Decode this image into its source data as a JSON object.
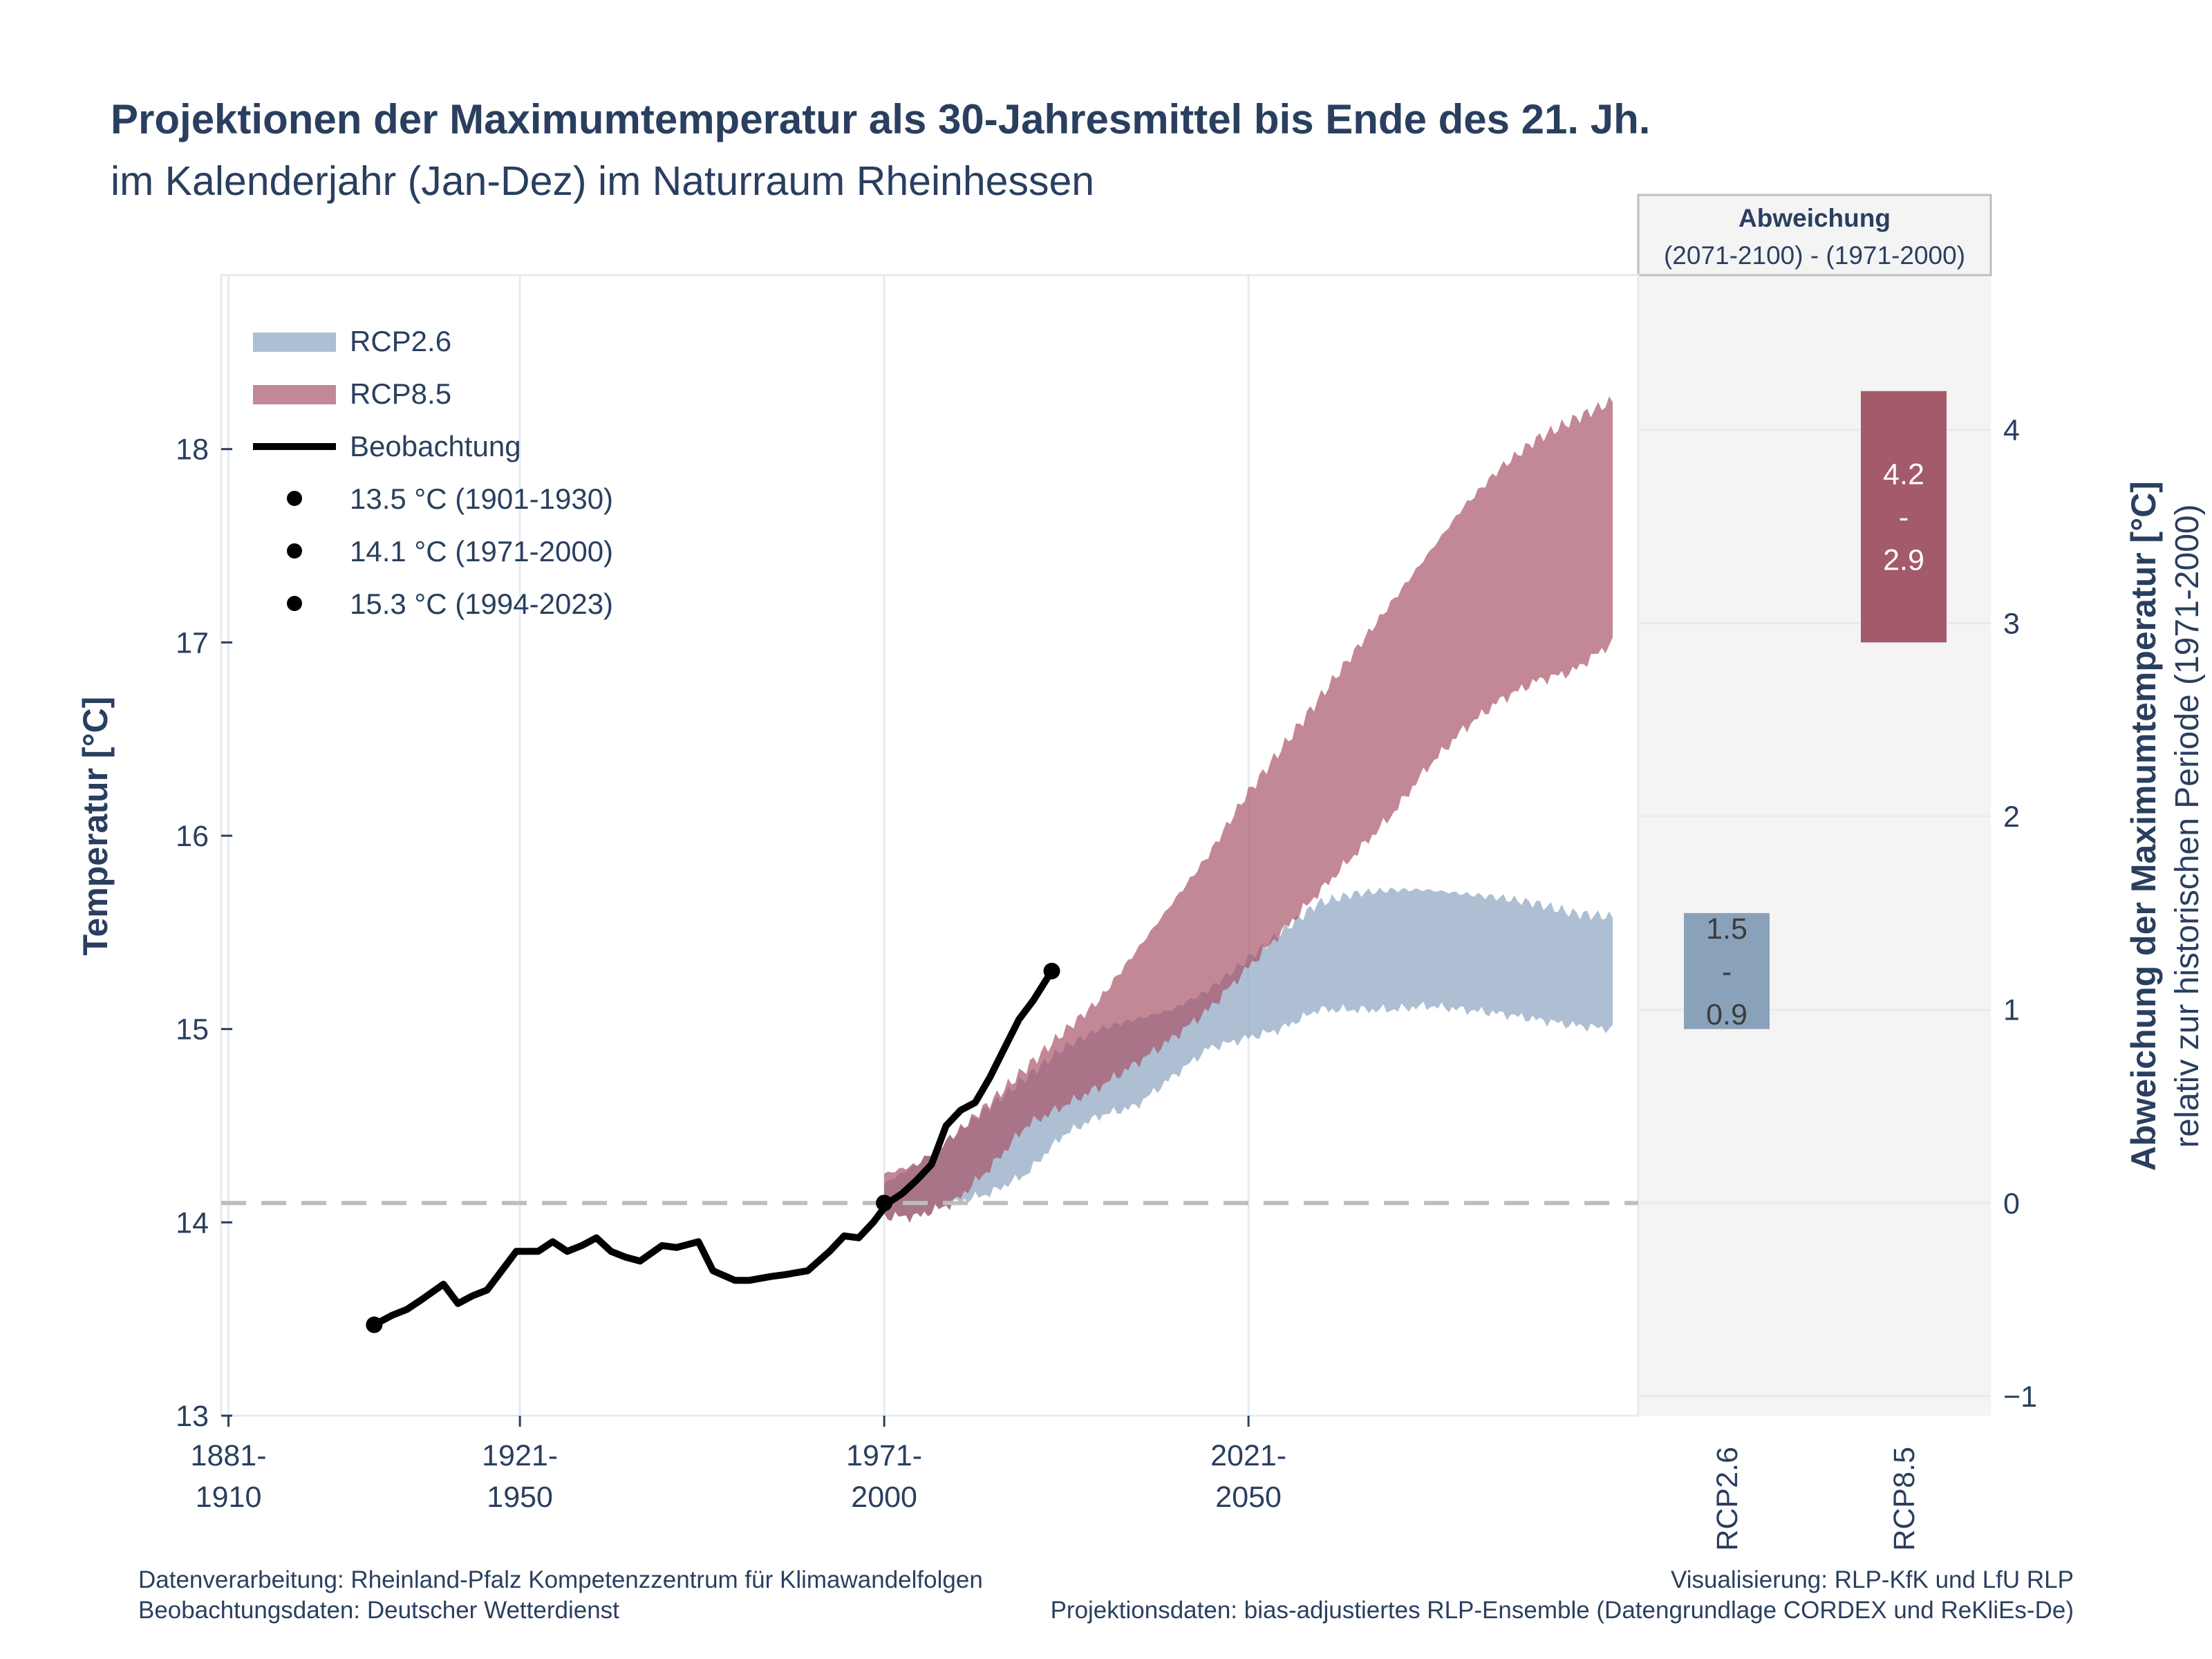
{
  "title": "Projektionen der Maximumtemperatur als 30-Jahresmittel bis Ende des 21. Jh.",
  "subtitle": "im Kalenderjahr (Jan-Dez) im Naturraum Rheinhessen",
  "footer": {
    "left_line1": "Datenverarbeitung: Rheinland-Pfalz Kompetenzzentrum für Klimawandelfolgen",
    "left_line2": "Beobachtungsdaten:  Deutscher Wetterdienst",
    "right_line1": "Visualisierung: RLP-KfK und LfU RLP",
    "right_line2": "Projektionsdaten: bias-adjustiertes RLP-Ensemble (Datengrundlage CORDEX und ReKliEs-De)"
  },
  "colors": {
    "rcp26": "#8fa6c2",
    "rcp85": "#a74f64",
    "rcp26_bar": "#8aa1ba",
    "rcp85_bar": "#a35a6a",
    "observation": "#000000",
    "text": "#2a3f5f",
    "panel_bg": "#f4f4f4"
  },
  "chart_data": [
    {
      "type": "area",
      "ylabel": "Temperatur [°C]",
      "ylim": [
        13,
        18.9
      ],
      "yticks": [
        "13",
        "14",
        "15",
        "16",
        "17",
        "18"
      ],
      "xlim": [
        1894.5,
        2089
      ],
      "xticks": [
        {
          "x": 1895.5,
          "label": [
            "1881-",
            "1910"
          ]
        },
        {
          "x": 1935.5,
          "label": [
            "1921-",
            "1950"
          ]
        },
        {
          "x": 1985.5,
          "label": [
            "1971-",
            "2000"
          ]
        },
        {
          "x": 2035.5,
          "label": [
            "2021-",
            "2050"
          ]
        }
      ],
      "reference_line": 14.1,
      "grid": true,
      "legend_position": "top-left",
      "legend": {
        "rcp26": "RCP2.6",
        "rcp85": "RCP8.5",
        "observation": "Beobachtung",
        "points": [
          "13.5 °C (1901-1930)",
          "14.1 °C (1971-2000)",
          "15.3 °C (1994-2023)"
        ]
      },
      "series": [
        {
          "name": "RCP2.6",
          "x": [
            1985.5,
            1990,
            1995,
            2000,
            2005,
            2010,
            2015,
            2020,
            2025,
            2030,
            2035,
            2040,
            2045,
            2050,
            2055,
            2060,
            2065,
            2070,
            2075,
            2080,
            2085.5
          ],
          "lower": [
            14.03,
            14.03,
            14.1,
            14.15,
            14.25,
            14.45,
            14.55,
            14.6,
            14.75,
            14.9,
            14.95,
            15.0,
            15.1,
            15.1,
            15.1,
            15.12,
            15.1,
            15.08,
            15.05,
            15.02,
            15.0
          ],
          "upper": [
            14.2,
            14.3,
            14.45,
            14.6,
            14.75,
            14.9,
            15.0,
            15.05,
            15.1,
            15.2,
            15.35,
            15.5,
            15.65,
            15.7,
            15.72,
            15.72,
            15.7,
            15.68,
            15.65,
            15.6,
            15.58
          ]
        },
        {
          "name": "RCP8.5",
          "x": [
            1985.5,
            1990,
            1995,
            2000,
            2005,
            2010,
            2015,
            2020,
            2025,
            2030,
            2035,
            2040,
            2045,
            2050,
            2055,
            2060,
            2065,
            2070,
            2075,
            2080,
            2085.5
          ],
          "lower": [
            14.03,
            14.03,
            14.1,
            14.28,
            14.5,
            14.6,
            14.7,
            14.82,
            14.95,
            15.1,
            15.3,
            15.5,
            15.7,
            15.9,
            16.1,
            16.35,
            16.55,
            16.7,
            16.8,
            16.85,
            17.0
          ],
          "upper": [
            14.25,
            14.3,
            14.45,
            14.62,
            14.8,
            14.98,
            15.15,
            15.4,
            15.65,
            15.9,
            16.2,
            16.45,
            16.7,
            16.95,
            17.2,
            17.45,
            17.7,
            17.9,
            18.05,
            18.15,
            18.25
          ]
        },
        {
          "name": "Beobachtung",
          "x": [
            1915.5,
            1918,
            1920,
            1922,
            1925,
            1927,
            1929,
            1931,
            1933,
            1935,
            1938,
            1940,
            1942,
            1944,
            1946,
            1948,
            1950,
            1952,
            1955,
            1957,
            1960,
            1962,
            1965,
            1967,
            1970,
            1972,
            1975,
            1978,
            1980,
            1982,
            1984,
            1986,
            1988,
            1990,
            1992,
            1994,
            1996,
            1998,
            2000,
            2002,
            2004,
            2006,
            2008.5
          ],
          "y": [
            13.47,
            13.52,
            13.55,
            13.6,
            13.68,
            13.58,
            13.62,
            13.65,
            13.75,
            13.85,
            13.85,
            13.9,
            13.85,
            13.88,
            13.92,
            13.85,
            13.82,
            13.8,
            13.88,
            13.87,
            13.9,
            13.75,
            13.7,
            13.7,
            13.72,
            13.73,
            13.75,
            13.85,
            13.93,
            13.92,
            14.0,
            14.1,
            14.15,
            14.22,
            14.3,
            14.5,
            14.58,
            14.62,
            14.75,
            14.9,
            15.05,
            15.15,
            15.3
          ]
        }
      ],
      "points": [
        {
          "x": 1915.5,
          "y": 13.47
        },
        {
          "x": 1985.5,
          "y": 14.1
        },
        {
          "x": 2008.5,
          "y": 15.3
        }
      ]
    },
    {
      "type": "bar",
      "panel_title": "Abweichung",
      "panel_subtitle": "(2071-2100) - (1971-2000)",
      "ylabel": "Abweichung der Maximumtemperatur [°C]",
      "ylabel2": "relativ zur historischen Periode (1971-2000)",
      "ylim": [
        -1.1,
        4.8
      ],
      "yticks": [
        "−1",
        "0",
        "1",
        "2",
        "3",
        "4"
      ],
      "categories": [
        "RCP2.6",
        "RCP8.5"
      ],
      "ranges": [
        {
          "name": "RCP2.6",
          "low": 0.9,
          "high": 1.5,
          "label_high": "1.5",
          "label_sep": "-",
          "label_low": "0.9"
        },
        {
          "name": "RCP8.5",
          "low": 2.9,
          "high": 4.2,
          "label_high": "4.2",
          "label_sep": "-",
          "label_low": "2.9"
        }
      ]
    }
  ]
}
